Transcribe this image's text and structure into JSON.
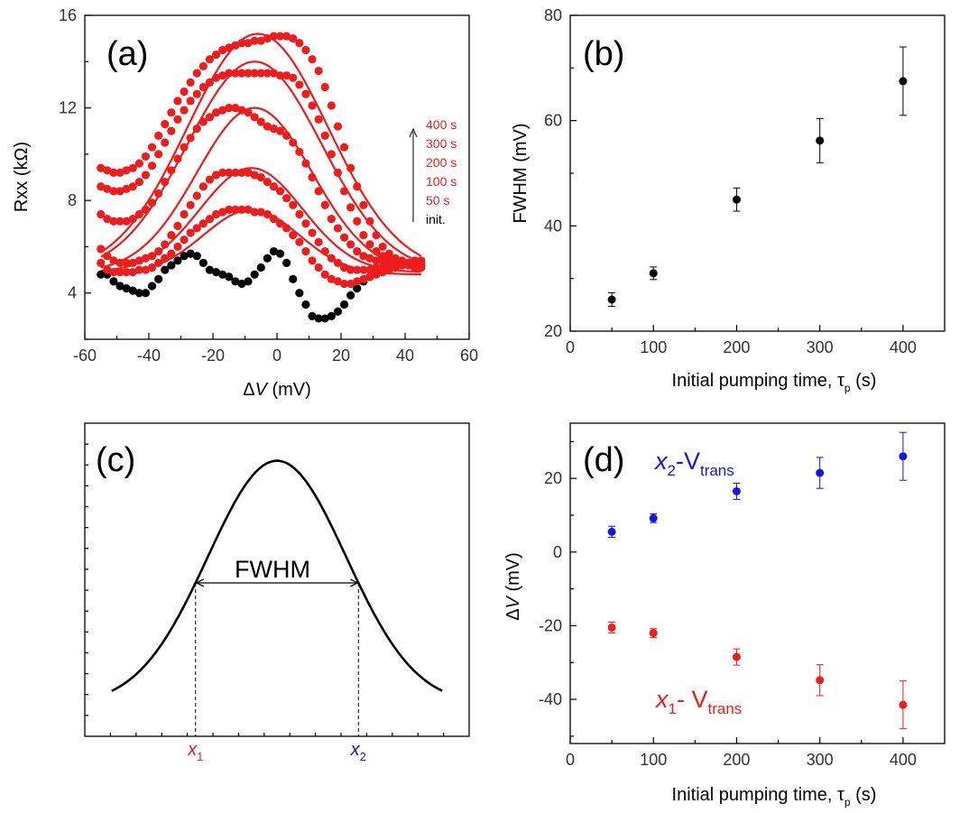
{
  "panels": {
    "a": {
      "label": "(a)",
      "ylabel": "Rxx (kΩ)",
      "xlabel_prefix": "Δ",
      "xlabel_var": "V",
      "xlabel_suffix": " (mV)",
      "legend": [
        "400 s",
        "300 s",
        "200 s",
        "100 s",
        "50 s",
        "init."
      ]
    },
    "b": {
      "label": "(b)",
      "ylabel": "FWHM (mV)",
      "xlabel": "Initial pumping time, τ",
      "xlabel_sub": "p",
      "xlabel_end": " (s)"
    },
    "c": {
      "label": "(c)",
      "fwhm_label": "FWHM",
      "x1_label": "x",
      "x1_sub": "1",
      "x2_label": "x",
      "x2_sub": "2"
    },
    "d": {
      "label": "(d)",
      "ylabel_prefix": "Δ",
      "ylabel_var": "V",
      "ylabel_suffix": " (mV)",
      "xlabel": "Initial pumping time, τ",
      "xlabel_sub": "p",
      "xlabel_end": " (s)",
      "blue_label_a": "x",
      "blue_label_sub": "2",
      "blue_label_b": "-V",
      "blue_label_sub2": "trans",
      "red_label_a": "x",
      "red_label_sub": "1",
      "red_label_b": "- V",
      "red_label_sub2": "trans"
    }
  },
  "colors": {
    "red": "#ee1c1c",
    "blue": "#1515e0",
    "black": "#000000"
  },
  "chart_data": [
    {
      "panel": "a",
      "type": "scatter",
      "xlim": [
        -60,
        60
      ],
      "ylim": [
        2,
        16
      ],
      "xticks": [
        -60,
        -40,
        -20,
        0,
        20,
        40,
        60
      ],
      "yticks": [
        4,
        8,
        12,
        16
      ],
      "series": [
        {
          "name": "init.",
          "color": "#000000",
          "x": [
            -55,
            -53,
            -51,
            -49,
            -47,
            -45,
            -43,
            -41,
            -39,
            -37,
            -35,
            -33,
            -31,
            -29,
            -27,
            -25,
            -23,
            -21,
            -19,
            -17,
            -15,
            -13,
            -11,
            -9,
            -7,
            -5,
            -3,
            -1,
            1,
            3,
            5,
            7,
            9,
            11,
            13,
            15,
            17,
            19,
            21,
            23,
            25,
            27,
            29,
            31,
            33,
            35,
            37,
            39,
            41,
            43,
            45
          ],
          "y": [
            4.8,
            4.8,
            4.5,
            4.3,
            4.2,
            4.1,
            4.0,
            4.0,
            4.3,
            4.6,
            5.0,
            5.2,
            5.4,
            5.6,
            5.7,
            5.6,
            5.3,
            5.0,
            4.9,
            4.8,
            4.7,
            4.5,
            4.4,
            4.5,
            4.8,
            5.1,
            5.5,
            5.8,
            5.7,
            5.3,
            4.6,
            4.0,
            3.5,
            3.0,
            2.9,
            2.9,
            3.0,
            3.2,
            3.5,
            3.9,
            4.2,
            4.5,
            4.7,
            4.9,
            5.0,
            5.1,
            5.2,
            5.2,
            5.2,
            5.2,
            5.2
          ]
        },
        {
          "name": "50 s",
          "color": "#ee1c1c",
          "x": [
            -55,
            -53,
            -51,
            -49,
            -47,
            -45,
            -43,
            -41,
            -39,
            -37,
            -35,
            -33,
            -31,
            -29,
            -27,
            -25,
            -23,
            -21,
            -19,
            -17,
            -15,
            -13,
            -11,
            -9,
            -7,
            -5,
            -3,
            -1,
            1,
            3,
            5,
            7,
            9,
            11,
            13,
            15,
            17,
            19,
            21,
            23,
            25,
            27,
            29,
            31,
            33,
            35,
            37,
            39,
            41,
            43,
            45
          ],
          "y": [
            5.3,
            5.0,
            4.9,
            4.9,
            4.9,
            4.9,
            5.0,
            5.0,
            5.1,
            5.3,
            5.5,
            5.7,
            6.0,
            6.3,
            6.6,
            6.8,
            7.0,
            7.2,
            7.4,
            7.5,
            7.6,
            7.6,
            7.6,
            7.6,
            7.5,
            7.5,
            7.4,
            7.2,
            7.0,
            6.8,
            6.5,
            6.2,
            5.8,
            5.4,
            5.1,
            4.8,
            4.6,
            4.5,
            4.4,
            4.4,
            4.5,
            4.6,
            4.7,
            4.8,
            4.9,
            5.0,
            5.1,
            5.2,
            5.3,
            5.3,
            5.3
          ]
        },
        {
          "name": "100 s",
          "color": "#ee1c1c",
          "x": [
            -55,
            -53,
            -51,
            -49,
            -47,
            -45,
            -43,
            -41,
            -39,
            -37,
            -35,
            -33,
            -31,
            -29,
            -27,
            -25,
            -23,
            -21,
            -19,
            -17,
            -15,
            -13,
            -11,
            -9,
            -7,
            -5,
            -3,
            -1,
            1,
            3,
            5,
            7,
            9,
            11,
            13,
            15,
            17,
            19,
            21,
            23,
            25,
            27,
            29,
            31,
            33,
            35,
            37,
            39,
            41,
            43,
            45
          ],
          "y": [
            5.9,
            5.6,
            5.4,
            5.3,
            5.3,
            5.3,
            5.4,
            5.5,
            5.6,
            5.8,
            6.1,
            6.5,
            6.9,
            7.4,
            7.8,
            8.2,
            8.6,
            8.9,
            9.1,
            9.2,
            9.2,
            9.2,
            9.2,
            9.2,
            9.1,
            9.0,
            8.8,
            8.6,
            8.4,
            8.1,
            7.8,
            7.4,
            7.0,
            6.6,
            6.2,
            5.8,
            5.5,
            5.3,
            5.1,
            5.0,
            5.0,
            5.0,
            5.0,
            5.1,
            5.1,
            5.2,
            5.2,
            5.3,
            5.3,
            5.4,
            5.4
          ]
        },
        {
          "name": "200 s",
          "color": "#ee1c1c",
          "x": [
            -55,
            -53,
            -51,
            -49,
            -47,
            -45,
            -43,
            -41,
            -39,
            -37,
            -35,
            -33,
            -31,
            -29,
            -27,
            -25,
            -23,
            -21,
            -19,
            -17,
            -15,
            -13,
            -11,
            -9,
            -7,
            -5,
            -3,
            -1,
            1,
            3,
            5,
            7,
            9,
            11,
            13,
            15,
            17,
            19,
            21,
            23,
            25,
            27,
            29,
            31,
            33,
            35,
            37,
            39,
            41,
            43,
            45
          ],
          "y": [
            7.4,
            7.2,
            7.1,
            7.1,
            7.1,
            7.2,
            7.4,
            7.6,
            7.9,
            8.3,
            8.8,
            9.3,
            9.8,
            10.3,
            10.7,
            11.1,
            11.4,
            11.6,
            11.8,
            11.9,
            12.0,
            12.0,
            11.9,
            11.8,
            11.6,
            11.4,
            11.2,
            11.1,
            11.0,
            10.8,
            10.5,
            10.1,
            9.6,
            9.0,
            8.4,
            7.8,
            7.2,
            6.8,
            6.4,
            6.1,
            5.8,
            5.6,
            5.5,
            5.4,
            5.4,
            5.3,
            5.3,
            5.3,
            5.3,
            5.3,
            5.3
          ]
        },
        {
          "name": "300 s",
          "color": "#ee1c1c",
          "x": [
            -55,
            -53,
            -51,
            -49,
            -47,
            -45,
            -43,
            -41,
            -39,
            -37,
            -35,
            -33,
            -31,
            -29,
            -27,
            -25,
            -23,
            -21,
            -19,
            -17,
            -15,
            -13,
            -11,
            -9,
            -7,
            -5,
            -3,
            -1,
            1,
            3,
            5,
            7,
            9,
            11,
            13,
            15,
            17,
            19,
            21,
            23,
            25,
            27,
            29,
            31,
            33,
            35,
            37,
            39,
            41,
            43,
            45
          ],
          "y": [
            8.6,
            8.5,
            8.4,
            8.4,
            8.5,
            8.6,
            8.8,
            9.1,
            9.5,
            10.0,
            10.5,
            11.0,
            11.5,
            11.9,
            12.3,
            12.6,
            12.9,
            13.1,
            13.3,
            13.4,
            13.5,
            13.5,
            13.5,
            13.5,
            13.5,
            13.5,
            13.5,
            13.5,
            13.4,
            13.4,
            13.3,
            13.0,
            12.6,
            12.1,
            11.5,
            10.8,
            10.0,
            9.2,
            8.4,
            7.7,
            7.1,
            6.5,
            6.1,
            5.8,
            5.6,
            5.5,
            5.4,
            5.3,
            5.2,
            5.1,
            5.1
          ]
        },
        {
          "name": "400 s",
          "color": "#ee1c1c",
          "x": [
            -55,
            -53,
            -51,
            -49,
            -47,
            -45,
            -43,
            -41,
            -39,
            -37,
            -35,
            -33,
            -31,
            -29,
            -27,
            -25,
            -23,
            -21,
            -19,
            -17,
            -15,
            -13,
            -11,
            -9,
            -7,
            -5,
            -3,
            -1,
            1,
            3,
            5,
            7,
            9,
            11,
            13,
            15,
            17,
            19,
            21,
            23,
            25,
            27,
            29,
            31,
            33,
            35,
            37,
            39,
            41,
            43,
            45
          ],
          "y": [
            9.4,
            9.3,
            9.2,
            9.2,
            9.3,
            9.4,
            9.6,
            9.9,
            10.3,
            10.8,
            11.3,
            11.8,
            12.3,
            12.7,
            13.1,
            13.5,
            13.8,
            14.1,
            14.3,
            14.5,
            14.6,
            14.7,
            14.8,
            14.8,
            14.9,
            14.9,
            15.0,
            15.1,
            15.1,
            15.1,
            15.0,
            14.8,
            14.5,
            14.1,
            13.6,
            12.9,
            12.1,
            11.2,
            10.3,
            9.4,
            8.6,
            7.8,
            7.1,
            6.5,
            6.0,
            5.7,
            5.5,
            5.4,
            5.3,
            5.2,
            5.1
          ]
        }
      ],
      "fits": [
        {
          "name": "50 s",
          "base": 4.8,
          "amp": 2.8,
          "center": -8,
          "sigma": 15
        },
        {
          "name": "100 s",
          "base": 4.9,
          "amp": 4.5,
          "center": -8,
          "sigma": 16
        },
        {
          "name": "200 s",
          "base": 4.9,
          "amp": 7.1,
          "center": -7,
          "sigma": 18
        },
        {
          "name": "300 s",
          "base": 4.9,
          "amp": 9.1,
          "center": -7,
          "sigma": 21
        },
        {
          "name": "400 s",
          "base": 4.9,
          "amp": 10.3,
          "center": -6,
          "sigma": 22
        }
      ]
    },
    {
      "panel": "b",
      "type": "scatter",
      "xlim": [
        0,
        450
      ],
      "ylim": [
        20,
        80
      ],
      "xticks": [
        0,
        100,
        200,
        300,
        400
      ],
      "yticks": [
        20,
        40,
        60,
        80
      ],
      "series": [
        {
          "name": "",
          "color": "#000000",
          "x": [
            50,
            100,
            200,
            300,
            400
          ],
          "y": [
            26,
            31,
            45,
            56.2,
            67.5
          ],
          "err": [
            1.3,
            1.2,
            2.2,
            4.2,
            6.5
          ]
        }
      ]
    },
    {
      "panel": "c",
      "type": "line",
      "xlim": [
        0,
        1
      ],
      "ylim": [
        0,
        1
      ],
      "series": [
        {
          "name": "",
          "color": "#000000",
          "base": 0.1,
          "amp": 0.78,
          "center": 0.5,
          "sigma": 0.18
        }
      ]
    },
    {
      "panel": "d",
      "type": "scatter",
      "xlim": [
        0,
        450
      ],
      "ylim": [
        -52,
        35
      ],
      "xticks": [
        0,
        100,
        200,
        300,
        400
      ],
      "yticks": [
        -40,
        -20,
        0,
        20
      ],
      "series": [
        {
          "name": "x2-Vtrans",
          "color": "#1515e0",
          "x": [
            50,
            100,
            200,
            300,
            400
          ],
          "y": [
            5.5,
            9.2,
            16.5,
            21.5,
            26
          ],
          "err": [
            1.5,
            1.2,
            2.2,
            4.2,
            6.5
          ]
        },
        {
          "name": "x1- Vtrans",
          "color": "#ee1c1c",
          "x": [
            50,
            100,
            200,
            300,
            400
          ],
          "y": [
            -20.5,
            -22,
            -28.5,
            -34.8,
            -41.5
          ],
          "err": [
            1.5,
            1.2,
            2.2,
            4.2,
            6.5
          ]
        }
      ]
    }
  ]
}
